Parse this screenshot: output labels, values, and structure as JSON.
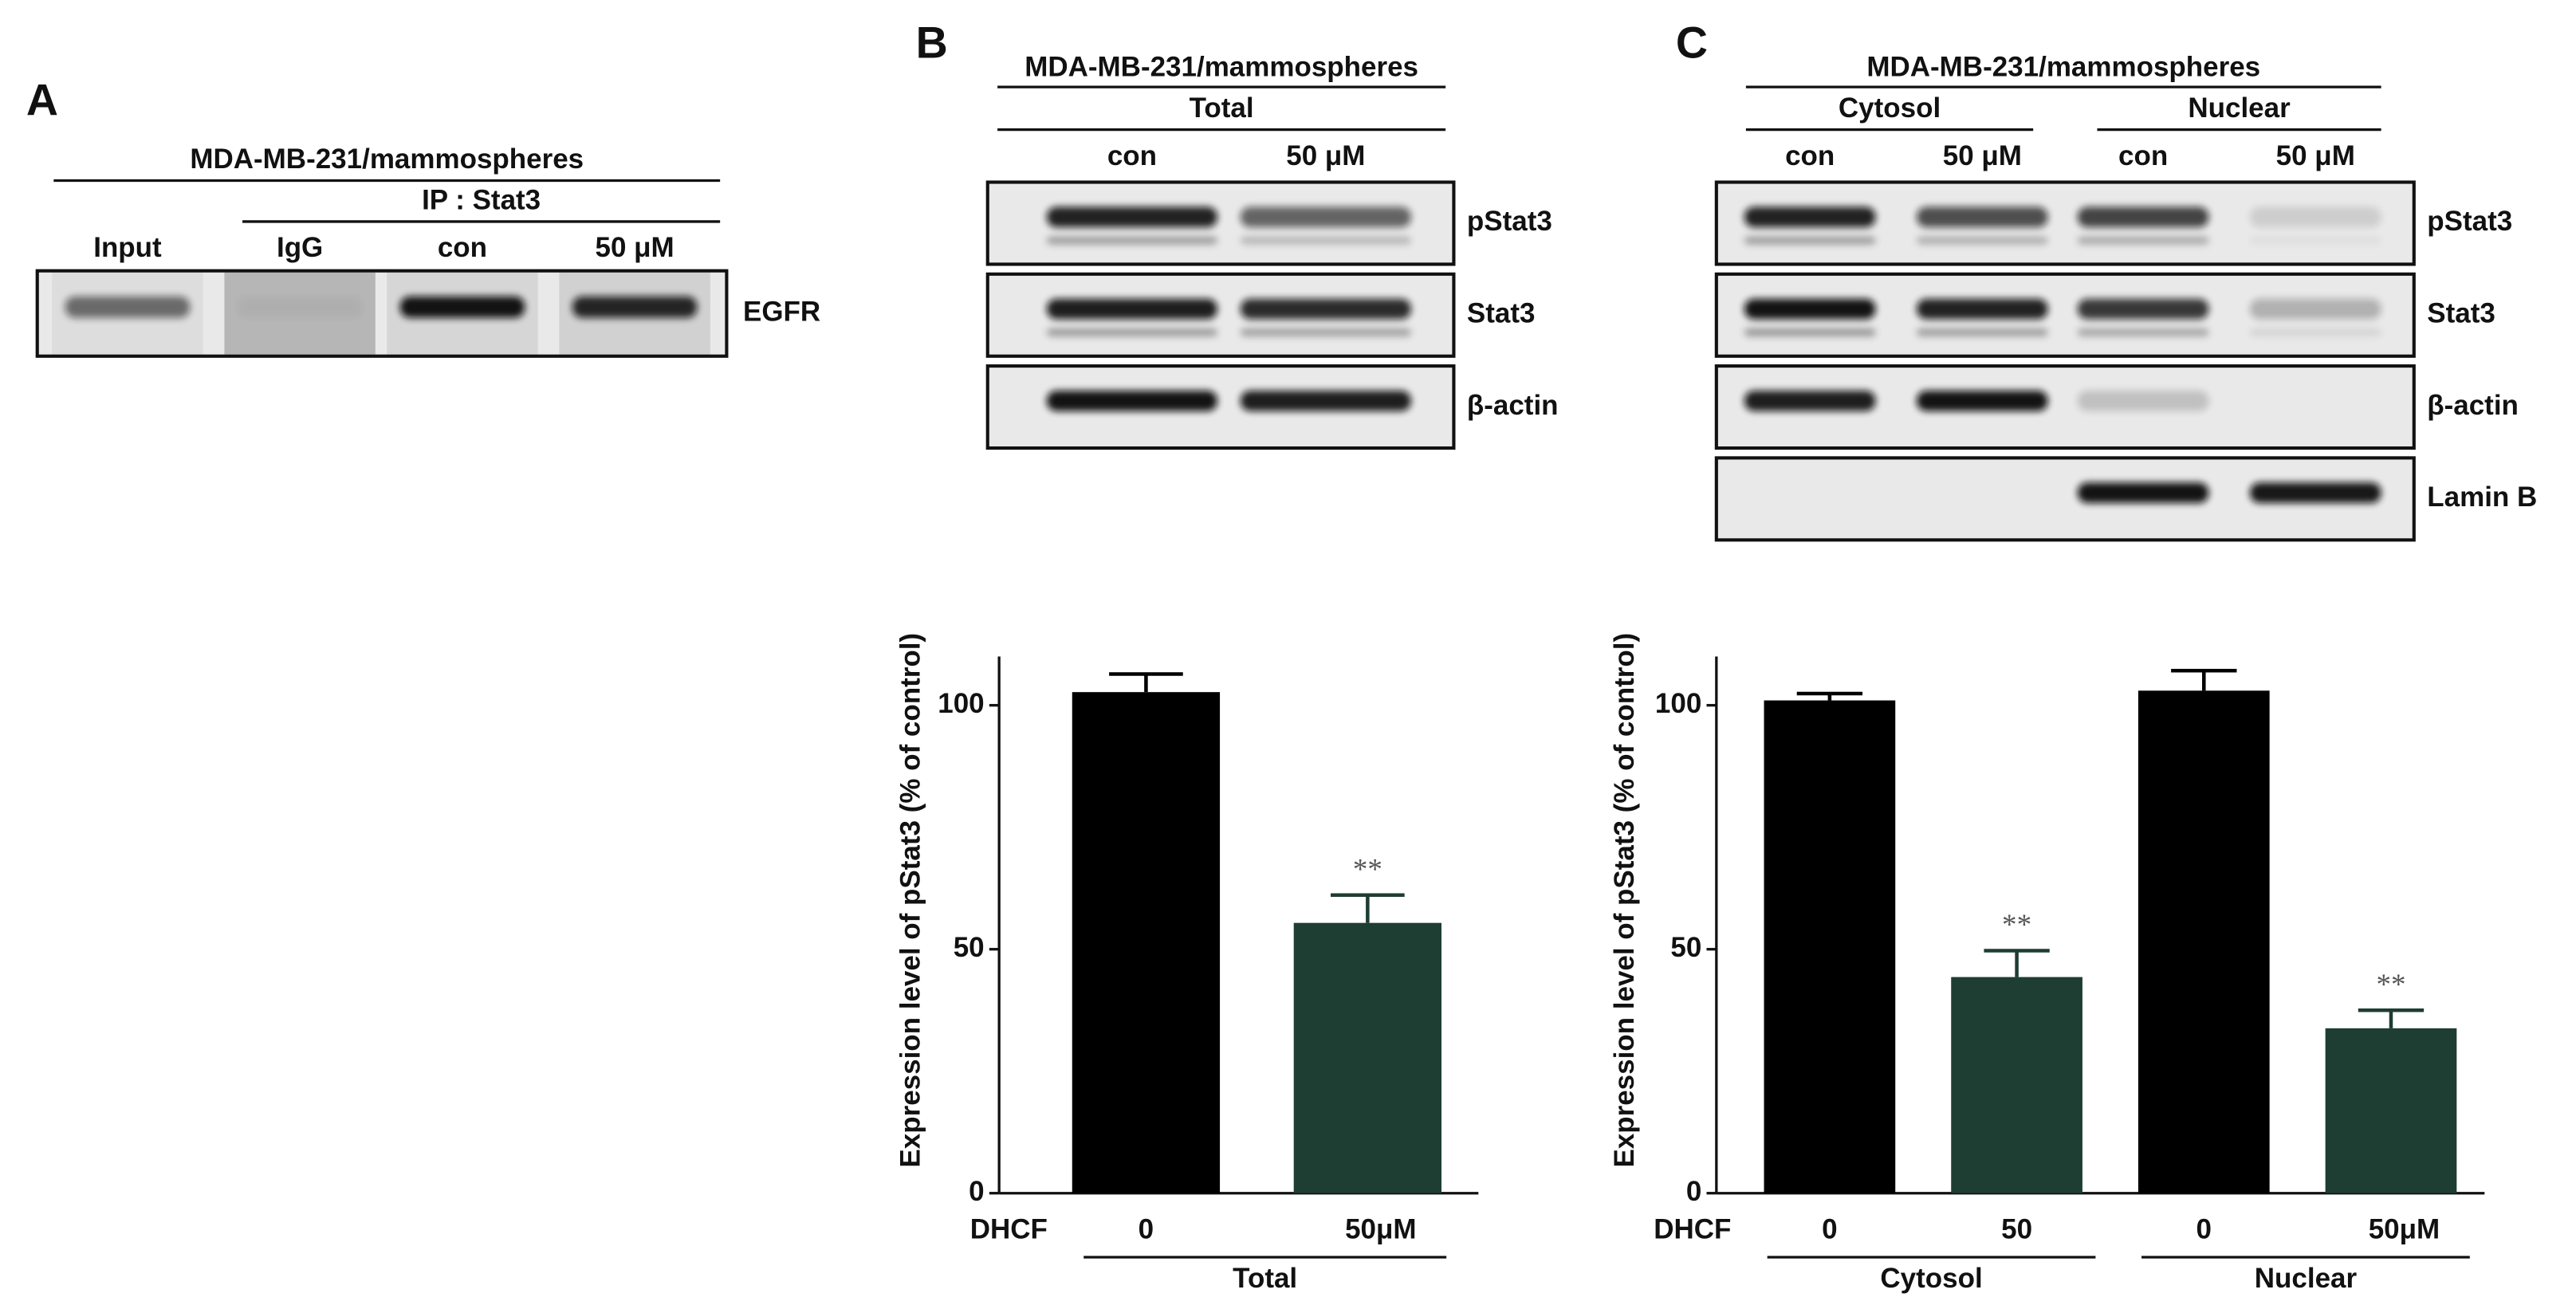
{
  "panels": [
    {
      "label": "A",
      "header": "MDA-MB-231/mammospheres",
      "subheader": "IP : Stat3",
      "lanes": [
        "Input",
        "IgG",
        "con",
        "50 μM"
      ],
      "bands": [
        "EGFR"
      ]
    },
    {
      "label": "B",
      "header": "MDA-MB-231/mammospheres",
      "subheader": "Total",
      "lanes": [
        "con",
        "50 μM"
      ],
      "bands": [
        "pStat3",
        "Stat3",
        "β-actin"
      ]
    },
    {
      "label": "C",
      "header": "MDA-MB-231/mammospheres",
      "groups": [
        "Cytosol",
        "Nuclear"
      ],
      "lanes": [
        "con",
        "50 μM",
        "con",
        "50 μM"
      ],
      "bands": [
        "pStat3",
        "Stat3",
        "β-actin",
        "Lamin B"
      ]
    }
  ],
  "chart_data": [
    {
      "type": "bar",
      "ylabel": "Expression level of pStat3 (% of control)",
      "xlabel": "DHCF",
      "categories": [
        "0",
        "50μM"
      ],
      "values": [
        102.7,
        55.4
      ],
      "errors": [
        3.7,
        5.7
      ],
      "colors": [
        "#000000",
        "#1e3d33"
      ],
      "annotations": [
        null,
        "**"
      ],
      "group_labels": [
        "Total"
      ],
      "ylim": [
        0,
        110
      ],
      "yticks": [
        0,
        50,
        100
      ]
    },
    {
      "type": "bar",
      "ylabel": "Expression level of pStat3 (% of control)",
      "xlabel": "DHCF",
      "categories": [
        "0",
        "50",
        "0",
        "50μM"
      ],
      "values": [
        101.0,
        44.3,
        103.0,
        33.8
      ],
      "errors": [
        1.4,
        5.4,
        4.1,
        3.7
      ],
      "colors": [
        "#000000",
        "#1e3d33",
        "#000000",
        "#1e3d33"
      ],
      "annotations": [
        null,
        "**",
        null,
        "**"
      ],
      "group_labels": [
        "Cytosol",
        "Nuclear"
      ],
      "ylim": [
        0,
        110
      ],
      "yticks": [
        0,
        50,
        100
      ]
    }
  ]
}
